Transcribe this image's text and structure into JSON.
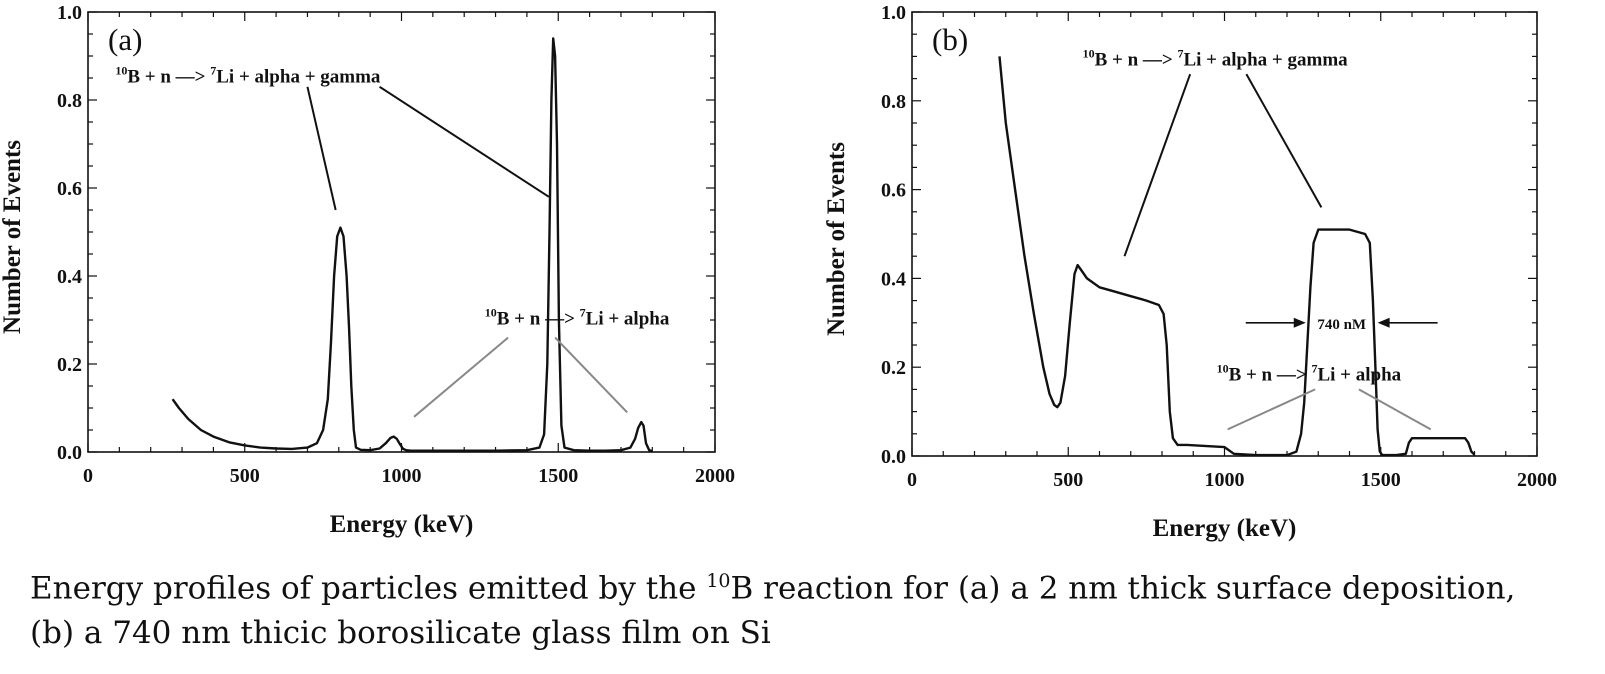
{
  "caption": {
    "line1_pre": "Energy profiles of particles emitted by the ",
    "line1_sup": "10",
    "line1_post": "B reaction for (a) a 2 nm thick surface deposition,",
    "line2": "(b) a 740 nm thicic borosilicate glass film on Si"
  },
  "chart_data": [
    {
      "type": "line",
      "panel_label": "(a)",
      "xlabel": "Energy (keV)",
      "ylabel": "Number of Events",
      "xlim": [
        0,
        2000
      ],
      "ylim": [
        0,
        1.0
      ],
      "xticks": [
        0,
        500,
        1000,
        1500,
        2000
      ],
      "yticks": [
        0.0,
        0.2,
        0.4,
        0.6,
        0.8,
        1.0
      ],
      "xtick_labels": [
        "0",
        "500",
        "1000",
        "1500",
        "2000"
      ],
      "ytick_labels": [
        "0.0",
        "0.2",
        "0.4",
        "0.6",
        "0.8",
        "1.0"
      ],
      "series": [
        {
          "x": [
            270,
            290,
            320,
            360,
            400,
            450,
            500,
            550,
            600,
            650,
            700,
            730,
            750,
            765,
            775,
            785,
            795,
            805,
            815,
            825,
            833,
            840,
            848,
            855,
            870,
            900,
            930,
            950,
            965,
            975,
            985,
            995,
            1005,
            1015,
            1030,
            1100,
            1200,
            1300,
            1400,
            1440,
            1455,
            1465,
            1472,
            1478,
            1484,
            1490,
            1496,
            1502,
            1510,
            1520,
            1550,
            1600,
            1650,
            1700,
            1730,
            1745,
            1755,
            1765,
            1772,
            1780,
            1790,
            1800
          ],
          "y": [
            0.12,
            0.1,
            0.075,
            0.05,
            0.035,
            0.022,
            0.015,
            0.01,
            0.008,
            0.007,
            0.01,
            0.02,
            0.05,
            0.12,
            0.25,
            0.4,
            0.49,
            0.51,
            0.49,
            0.4,
            0.28,
            0.15,
            0.05,
            0.01,
            0.005,
            0.004,
            0.008,
            0.02,
            0.032,
            0.035,
            0.03,
            0.018,
            0.007,
            0.004,
            0.003,
            0.003,
            0.003,
            0.003,
            0.004,
            0.01,
            0.04,
            0.2,
            0.5,
            0.8,
            0.94,
            0.9,
            0.7,
            0.3,
            0.06,
            0.01,
            0.004,
            0.003,
            0.003,
            0.004,
            0.01,
            0.03,
            0.055,
            0.068,
            0.06,
            0.02,
            0.004,
            0.002
          ]
        }
      ],
      "annotations": [
        {
          "pre": "10",
          "b": "B + n —> ",
          "mid": "7",
          "text": "Li + alpha + gamma",
          "x": 510,
          "y": 0.84,
          "arrows": [
            [
              700,
              0.83,
              790,
              0.55
            ],
            [
              930,
              0.83,
              1470,
              0.58
            ]
          ],
          "arrow_color": "#111111"
        },
        {
          "pre": "10",
          "b": "B + n —> ",
          "mid": "7",
          "text": "Li + alpha",
          "x": 1560,
          "y": 0.29,
          "arrows": [
            [
              1340,
              0.26,
              1040,
              0.08
            ],
            [
              1490,
              0.26,
              1720,
              0.09
            ]
          ],
          "arrow_color": "#888888"
        }
      ]
    },
    {
      "type": "line",
      "panel_label": "(b)",
      "xlabel": "Energy (keV)",
      "ylabel": "Number of Events",
      "xlim": [
        0,
        2000
      ],
      "ylim": [
        0,
        1.0
      ],
      "xticks": [
        0,
        500,
        1000,
        1500,
        2000
      ],
      "yticks": [
        0.0,
        0.2,
        0.4,
        0.6,
        0.8,
        1.0
      ],
      "xtick_labels": [
        "0",
        "500",
        "1000",
        "1500",
        "2000"
      ],
      "ytick_labels": [
        "0.0",
        "0.2",
        "0.4",
        "0.6",
        "0.8",
        "1.0"
      ],
      "series": [
        {
          "x": [
            280,
            300,
            330,
            360,
            390,
            420,
            440,
            455,
            465,
            475,
            490,
            505,
            520,
            530,
            540,
            560,
            600,
            650,
            700,
            750,
            790,
            805,
            815,
            825,
            835,
            850,
            880,
            950,
            1000,
            1030,
            1100,
            1200,
            1230,
            1245,
            1255,
            1265,
            1275,
            1285,
            1300,
            1350,
            1400,
            1450,
            1465,
            1475,
            1483,
            1490,
            1497,
            1505,
            1550,
            1580,
            1590,
            1600,
            1650,
            1700,
            1750,
            1770,
            1780,
            1790,
            1800
          ],
          "y": [
            0.9,
            0.75,
            0.6,
            0.45,
            0.32,
            0.2,
            0.14,
            0.115,
            0.11,
            0.12,
            0.18,
            0.3,
            0.41,
            0.43,
            0.42,
            0.4,
            0.38,
            0.37,
            0.36,
            0.35,
            0.34,
            0.32,
            0.25,
            0.1,
            0.04,
            0.025,
            0.025,
            0.022,
            0.02,
            0.005,
            0.002,
            0.002,
            0.01,
            0.05,
            0.12,
            0.25,
            0.38,
            0.48,
            0.51,
            0.51,
            0.51,
            0.5,
            0.48,
            0.35,
            0.2,
            0.06,
            0.01,
            0.002,
            0.002,
            0.005,
            0.03,
            0.04,
            0.04,
            0.04,
            0.04,
            0.04,
            0.03,
            0.01,
            0.003
          ]
        }
      ],
      "annotations": [
        {
          "pre": "10",
          "b": "B + n —> ",
          "mid": "7",
          "text": "Li + alpha + gamma",
          "x": 970,
          "y": 0.88,
          "arrows": [
            [
              890,
              0.86,
              680,
              0.45
            ],
            [
              1070,
              0.86,
              1310,
              0.56
            ]
          ],
          "arrow_color": "#111111"
        },
        {
          "pre": "10",
          "b": "B + n —> ",
          "mid": "7",
          "text": "Li + alpha",
          "x": 1270,
          "y": 0.17,
          "arrows": [
            [
              1290,
              0.15,
              1010,
              0.06
            ],
            [
              1430,
              0.15,
              1660,
              0.06
            ]
          ],
          "arrow_color": "#888888"
        }
      ],
      "width_marker": {
        "label": "740 nM",
        "left": 1260,
        "right": 1490,
        "y": 0.3
      }
    }
  ]
}
